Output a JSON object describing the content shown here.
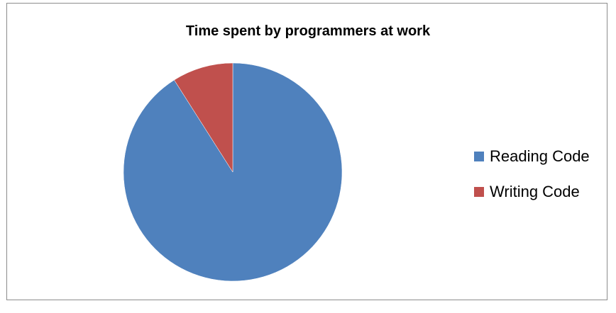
{
  "chart_data": {
    "type": "pie",
    "title": "Time spent by programmers at work",
    "categories": [
      "Reading Code",
      "Writing Code"
    ],
    "values": [
      91,
      9
    ],
    "colors": [
      "#4f81bd",
      "#c0504d"
    ],
    "legend_position": "right"
  }
}
